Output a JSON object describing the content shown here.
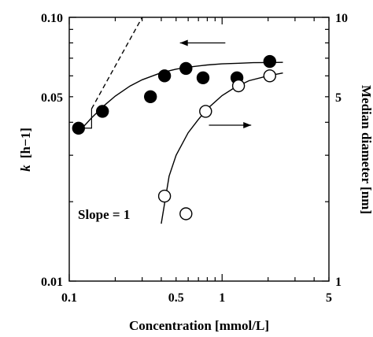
{
  "chart_data": {
    "type": "scatter",
    "x_scale": "log",
    "y_scale_left": "log",
    "y_scale_right": "log",
    "xlim": [
      0.1,
      5
    ],
    "ylim_left": [
      0.01,
      0.1
    ],
    "ylim_right": [
      1,
      10
    ],
    "xlabel": "Concentration [mmol/L]",
    "ylabel_left": "k [h−1]",
    "ylabel_left_parts": {
      "main": "k",
      "unit": "[h−1]"
    },
    "ylabel_right": "Median diameter [nm]",
    "x_ticks": [
      "0.1",
      "0.5",
      "1",
      "5"
    ],
    "y_left_ticks": [
      "0.01",
      "0.05",
      "0.10"
    ],
    "y_right_ticks": [
      "1",
      "5",
      "10"
    ],
    "series": [
      {
        "marker": "filled-circle",
        "axis": "left",
        "x": [
          0.115,
          0.165,
          0.34,
          0.42,
          0.58,
          0.75,
          1.25,
          2.05
        ],
        "y": [
          0.038,
          0.044,
          0.05,
          0.06,
          0.064,
          0.059,
          0.059,
          0.068
        ]
      },
      {
        "marker": "open-circle",
        "axis": "right",
        "x": [
          0.42,
          0.58,
          0.78,
          1.28,
          2.05
        ],
        "y": [
          2.1,
          1.8,
          4.4,
          5.5,
          6.0
        ]
      }
    ],
    "fit_curves": [
      {
        "axis": "left",
        "style": "solid",
        "x": [
          0.115,
          0.14,
          0.17,
          0.2,
          0.25,
          0.3,
          0.4,
          0.5,
          0.6,
          0.8,
          1.0,
          1.3,
          1.6,
          2.0,
          2.5
        ],
        "y": [
          0.0367,
          0.0416,
          0.0464,
          0.0503,
          0.0549,
          0.058,
          0.0617,
          0.0636,
          0.0647,
          0.066,
          0.0666,
          0.067,
          0.0673,
          0.0674,
          0.0675
        ]
      },
      {
        "axis": "right",
        "style": "solid",
        "x": [
          0.4,
          0.45,
          0.5,
          0.6,
          0.7,
          0.8,
          1.0,
          1.2,
          1.5,
          2.0,
          2.5
        ],
        "y": [
          1.65,
          2.5,
          3.0,
          3.65,
          4.1,
          4.5,
          5.05,
          5.4,
          5.75,
          6.0,
          6.15
        ]
      },
      {
        "axis": "left",
        "style": "dashed",
        "x": [
          0.14,
          0.3
        ],
        "y": [
          0.045,
          0.1
        ]
      }
    ],
    "annotations": {
      "slope_label": "Slope = 1",
      "arrow_left": {
        "from": [
          1.05,
          0.08
        ],
        "to": [
          0.53,
          0.08
        ],
        "axis": "left"
      },
      "arrow_right": {
        "from": [
          0.82,
          3.9
        ],
        "to": [
          1.55,
          3.9
        ],
        "axis": "right"
      },
      "slope_triangle": {
        "x": [
          0.115,
          0.14
        ],
        "y": [
          0.038,
          0.045
        ],
        "axis": "left"
      }
    },
    "grid": false,
    "legend": "none"
  }
}
